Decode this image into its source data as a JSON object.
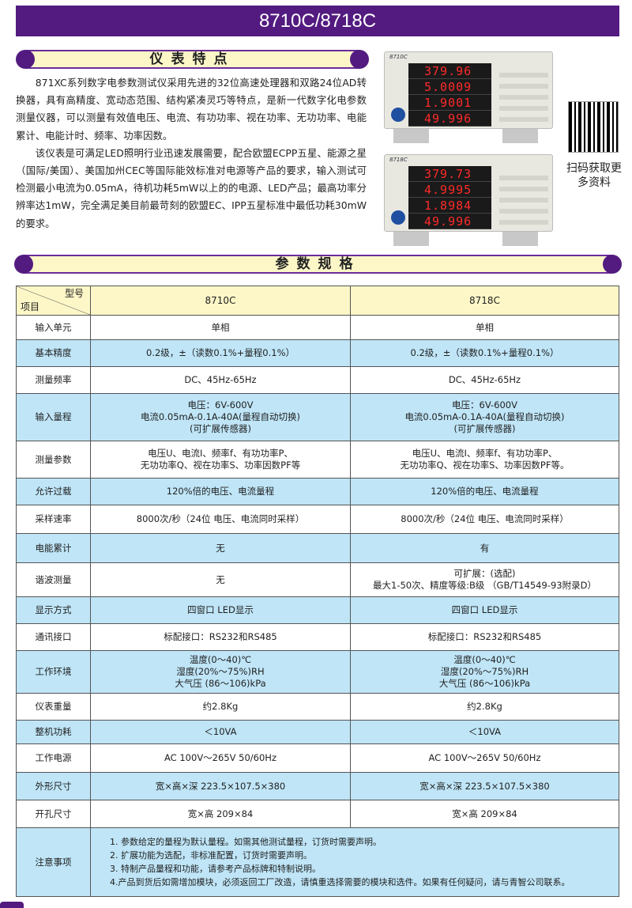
{
  "title": "8710C/8718C",
  "features": {
    "heading": "仪表特点",
    "paragraphs": [
      "871XC系列数字电参数测试仪采用先进的32位高速处理器和双路24位AD转换器，具有高精度、宽动态范围、结构紧凑灵巧等特点，是新一代数字化电参数测量仪器，可以测量有效值电压、电流、有功功率、视在功率、无功功率、电能累计、电能计时、频率、功率因数。",
      "该仪表是可满足LED照明行业迅速发展需要，配合欧盟ECPP五星、能源之星（国际/美国）、美国加州CEC等国际能效标准对电源等产品的要求，输入测试可检测最小电流为0.05mA，待机功耗5mW以上的的电源、LED产品；最高功率分辨率达1mW，完全满足美目前最苛刻的欧盟EC、IPP五星标准中最低功耗30mW的要求。"
    ]
  },
  "meters": [
    {
      "model": "8710C",
      "displays": [
        "379.96",
        "5.0009",
        "1.9001",
        "49.996"
      ]
    },
    {
      "model": "8718C",
      "displays": [
        "379.73",
        "4.9995",
        "1.8984",
        "49.996"
      ]
    }
  ],
  "qr": {
    "caption": "扫码获取更多资料"
  },
  "specs": {
    "heading": "参数规格",
    "header": {
      "model_label": "型号",
      "item_label": "项目",
      "models": [
        "8710C",
        "8718C"
      ]
    },
    "rows": [
      {
        "item": "输入单元",
        "a": "单相",
        "b": "单相"
      },
      {
        "item": "基本精度",
        "a": "0.2级，±（读数0.1%+量程0.1%）",
        "b": "0.2级，±（读数0.1%+量程0.1%）"
      },
      {
        "item": "测量频率",
        "a": "DC、45Hz-65Hz",
        "b": "DC、45Hz-65Hz"
      },
      {
        "item": "输入量程",
        "a": "电压：6V-600V\n电流0.05mA-0.1A-40A(量程自动切换)\n(可扩展传感器)",
        "b": "电压：6V-600V\n电流0.05mA-0.1A-40A(量程自动切换)\n(可扩展传感器)"
      },
      {
        "item": "测量参数",
        "a": "电压U、电流I、频率f、有功功率P、\n无功功率Q、视在功率S、功率因数PF等",
        "b": "电压U、电流I、频率f、有功功率P、\n无功功率Q、视在功率S、功率因数PF等。"
      },
      {
        "item": "允许过载",
        "a": "120%倍的电压、电流量程",
        "b": "120%倍的电压、电流量程"
      },
      {
        "item": "采样速率",
        "a": "8000次/秒（24位 电压、电流同时采样）",
        "b": "8000次/秒（24位 电压、电流同时采样）"
      },
      {
        "item": "电能累计",
        "a": "无",
        "b": "有"
      },
      {
        "item": "谐波测量",
        "a": "无",
        "b": "可扩展：(选配)\n最大1-50次、精度等级:B级 （GB/T14549-93附录D）"
      },
      {
        "item": "显示方式",
        "a": "四窗口 LED显示",
        "b": "四窗口 LED显示"
      },
      {
        "item": "通讯接口",
        "a": "标配接口：RS232和RS485",
        "b": "标配接口：RS232和RS485"
      },
      {
        "item": "工作环境",
        "a": "温度(0～40)℃\n湿度(20%～75%)RH\n大气压 (86～106)kPa",
        "b": "温度(0～40)℃\n湿度(20%～75%)RH\n大气压 (86～106)kPa"
      },
      {
        "item": "仪表重量",
        "a": "约2.8Kg",
        "b": "约2.8Kg"
      },
      {
        "item": "整机功耗",
        "a": "＜10VA",
        "b": "＜10VA"
      },
      {
        "item": "工作电源",
        "a": "AC  100V～265V  50/60Hz",
        "b": "AC  100V～265V  50/60Hz"
      },
      {
        "item": "外形尺寸",
        "a": "宽×高×深  223.5×107.5×380",
        "b": "宽×高×深  223.5×107.5×380"
      },
      {
        "item": "开孔尺寸",
        "a": "宽×高  209×84",
        "b": "宽×高  209×84"
      }
    ],
    "notes": {
      "item": "注意事项",
      "lines": [
        "1. 参数给定的量程为默认量程。如需其他测试量程，订货时需要声明。",
        "2. 扩展功能为选配，非标准配置，订货时需要声明。",
        "3. 特制产品量程和功能，请参考产品标牌和特制说明。",
        "4.产品到货后如需增加模块，必须返回工厂改造，请慎重选择需要的模块和选件。如果有任何疑问，请与青智公司联系。"
      ]
    }
  },
  "colors": {
    "brand": "#531b80",
    "banner": "#fdf7c8",
    "row_blue": "#bfe5f7"
  }
}
